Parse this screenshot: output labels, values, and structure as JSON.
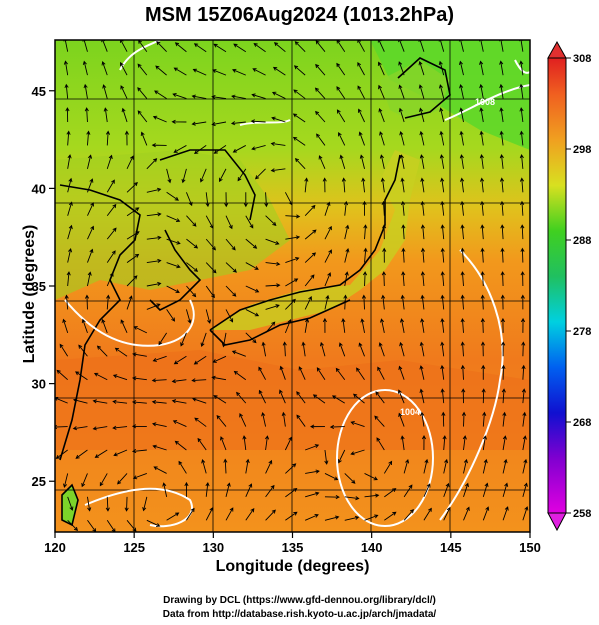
{
  "title": "MSM 15Z06Aug2024 (1013.2hPa)",
  "xaxis": {
    "label": "Longitude (degrees)",
    "ticks": [
      120,
      125,
      130,
      135,
      140,
      145,
      150
    ],
    "range": [
      120,
      150
    ]
  },
  "yaxis": {
    "label": "Latitude  (degrees)",
    "ticks": [
      25,
      30,
      35,
      40,
      45
    ],
    "range": [
      22.4,
      47.6
    ]
  },
  "colorbar": {
    "ticks": [
      258,
      268,
      278,
      288,
      298,
      308
    ],
    "range": [
      258,
      308
    ],
    "colormap": "rainbow (magenta→blue→cyan→green→yellow→orange→red)"
  },
  "credits": {
    "line1": "Drawing by DCL (https://www.gfd-dennou.org/library/dcl/)",
    "line2": "Data from http://database.rish.kyoto-u.ac.jp/arch/jmadata/"
  },
  "contour_labels": [
    "1004",
    "1008"
  ],
  "colors": {
    "sea_warm": "#f0901c",
    "land_green": "#8cd21e",
    "north_green": "#5ed828",
    "contour": "#ffffff",
    "vector": "#000000"
  }
}
